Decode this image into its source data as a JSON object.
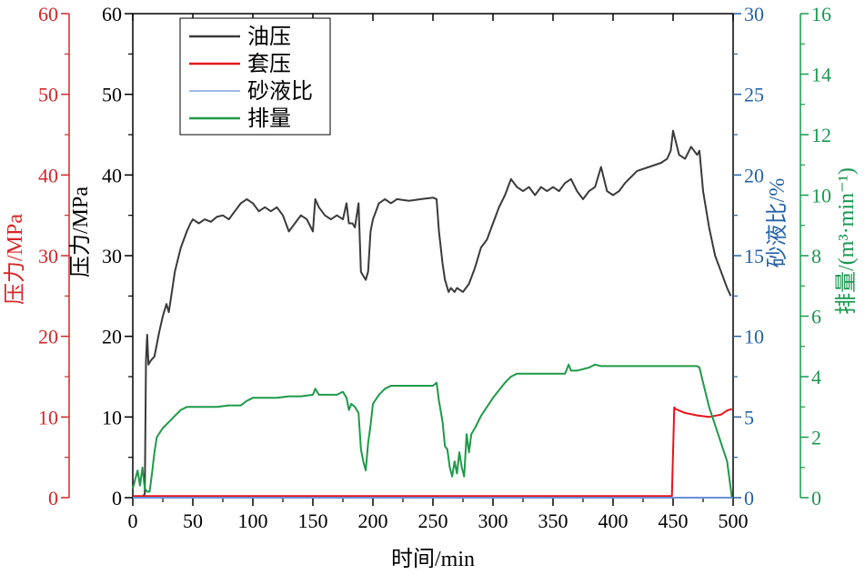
{
  "chart_data": {
    "type": "line",
    "x_axis": {
      "label": "时间/min",
      "range": [
        0,
        500
      ],
      "ticks": [
        0,
        50,
        100,
        150,
        200,
        250,
        300,
        350,
        400,
        450,
        500
      ]
    },
    "y_axes": [
      {
        "id": "pressure_left",
        "label": "压力/MPa",
        "color": "#d62728",
        "range": [
          0,
          60
        ],
        "ticks": [
          0,
          10,
          20,
          30,
          40,
          50,
          60
        ]
      },
      {
        "id": "pressure_inner",
        "label": "压力/MPa",
        "color": "#000000",
        "range": [
          0,
          60
        ],
        "ticks": [
          0,
          10,
          20,
          30,
          40,
          50,
          60
        ]
      },
      {
        "id": "sand_ratio",
        "label": "砂液比/%",
        "color": "#2563a8",
        "range": [
          0,
          30
        ],
        "ticks": [
          0,
          5,
          10,
          15,
          20,
          25,
          30
        ]
      },
      {
        "id": "flow_rate",
        "label": "排量/(m³·min⁻¹)",
        "color": "#1a9850",
        "range": [
          0,
          16
        ],
        "ticks": [
          0,
          2,
          4,
          6,
          8,
          10,
          12,
          14,
          16
        ]
      }
    ],
    "legend": {
      "placement": "top-left"
    },
    "series": [
      {
        "name": "油压",
        "axis": "pressure_inner",
        "color": "#3a3a3a",
        "x": [
          0,
          8,
          10,
          11,
          12,
          13,
          15,
          18,
          20,
          22,
          25,
          28,
          30,
          33,
          35,
          40,
          45,
          48,
          50,
          55,
          60,
          65,
          70,
          75,
          80,
          85,
          90,
          95,
          100,
          105,
          110,
          115,
          120,
          125,
          130,
          135,
          140,
          145,
          150,
          152,
          155,
          160,
          165,
          170,
          175,
          178,
          180,
          183,
          185,
          188,
          190,
          192,
          194,
          196,
          198,
          200,
          205,
          210,
          215,
          220,
          230,
          240,
          250,
          253,
          255,
          258,
          260,
          263,
          265,
          268,
          270,
          275,
          280,
          285,
          290,
          295,
          300,
          305,
          310,
          315,
          320,
          325,
          330,
          335,
          340,
          345,
          350,
          355,
          360,
          365,
          370,
          375,
          380,
          385,
          390,
          395,
          400,
          405,
          410,
          420,
          430,
          440,
          445,
          448,
          450,
          455,
          460,
          465,
          470,
          472,
          475,
          480,
          485,
          490,
          495,
          498
        ],
        "values": [
          0,
          0,
          0.5,
          17,
          20.2,
          16.5,
          17,
          17.5,
          19,
          20.5,
          22.5,
          24,
          23,
          26,
          28,
          31,
          33,
          34,
          34.5,
          34,
          34.5,
          34.2,
          34.8,
          35,
          34.5,
          35.5,
          36.5,
          37,
          36.5,
          35.5,
          36,
          35.5,
          36,
          35,
          33,
          34,
          35,
          34.5,
          33,
          37,
          36,
          35,
          34.5,
          35,
          34.5,
          36.5,
          34,
          34,
          33.5,
          36.5,
          28,
          27.5,
          27,
          28,
          33,
          34.5,
          36.5,
          37,
          36.5,
          37,
          36.8,
          37,
          37.2,
          37,
          33,
          29,
          27,
          25.5,
          26,
          25.5,
          26,
          25.5,
          26.5,
          28.5,
          31,
          32,
          34,
          36,
          37.5,
          39.5,
          38.5,
          38,
          38.5,
          37.5,
          38.5,
          38,
          38.5,
          38,
          39,
          39.5,
          38,
          37,
          38,
          38.5,
          41,
          38,
          37.5,
          38,
          39,
          40.5,
          41,
          41.5,
          42,
          43,
          45.5,
          42.5,
          42,
          43.5,
          42.5,
          43,
          38,
          33.5,
          30,
          28,
          26,
          25
        ]
      },
      {
        "name": "套压",
        "axis": "pressure_inner",
        "color": "#e8141b",
        "x": [
          0,
          100,
          200,
          300,
          400,
          449,
          451,
          452,
          455,
          460,
          470,
          480,
          490,
          495,
          499
        ],
        "values": [
          0.2,
          0.2,
          0.2,
          0.2,
          0.2,
          0.2,
          11.2,
          11,
          10.8,
          10.5,
          10.2,
          10,
          10.3,
          10.8,
          11
        ]
      },
      {
        "name": "砂液比",
        "axis": "sand_ratio",
        "color": "#6a8fd8",
        "x": [
          0,
          500
        ],
        "values": [
          0,
          0
        ]
      },
      {
        "name": "排量",
        "axis": "flow_rate",
        "color": "#1f9a48",
        "x": [
          0,
          2,
          4,
          6,
          8,
          10,
          12,
          14,
          16,
          18,
          20,
          25,
          30,
          35,
          40,
          45,
          48,
          50,
          60,
          70,
          80,
          90,
          95,
          100,
          110,
          120,
          130,
          140,
          150,
          152,
          155,
          160,
          165,
          170,
          175,
          178,
          180,
          182,
          185,
          188,
          190,
          192,
          194,
          196,
          198,
          200,
          205,
          210,
          215,
          220,
          230,
          240,
          250,
          253,
          255,
          258,
          260,
          262,
          264,
          266,
          268,
          270,
          272,
          274,
          276,
          278,
          280,
          282,
          285,
          290,
          300,
          310,
          315,
          320,
          330,
          340,
          350,
          360,
          363,
          365,
          370,
          380,
          385,
          390,
          400,
          420,
          440,
          460,
          470,
          472,
          475,
          480,
          485,
          490,
          495,
          499
        ],
        "values": [
          0.3,
          0.6,
          0.9,
          0.4,
          1.0,
          0.3,
          0.2,
          0.2,
          0.8,
          1.5,
          2.0,
          2.3,
          2.5,
          2.7,
          2.9,
          3.0,
          3.0,
          3.0,
          3.0,
          3.0,
          3.05,
          3.05,
          3.2,
          3.3,
          3.3,
          3.3,
          3.35,
          3.35,
          3.4,
          3.6,
          3.4,
          3.4,
          3.4,
          3.4,
          3.5,
          3.3,
          2.9,
          3.1,
          3.0,
          2.8,
          1.6,
          1.2,
          0.9,
          1.8,
          2.4,
          3.1,
          3.4,
          3.6,
          3.7,
          3.7,
          3.7,
          3.7,
          3.7,
          3.8,
          3.2,
          2.5,
          1.7,
          1.6,
          1.0,
          0.7,
          1.2,
          0.8,
          1.5,
          1.0,
          0.7,
          2.1,
          1.5,
          2.1,
          2.3,
          2.7,
          3.3,
          3.8,
          4.0,
          4.1,
          4.1,
          4.1,
          4.1,
          4.1,
          4.4,
          4.2,
          4.2,
          4.3,
          4.4,
          4.35,
          4.35,
          4.35,
          4.35,
          4.35,
          4.35,
          4.3,
          3.8,
          3.0,
          2.4,
          1.8,
          1.2,
          0.0
        ]
      }
    ]
  }
}
